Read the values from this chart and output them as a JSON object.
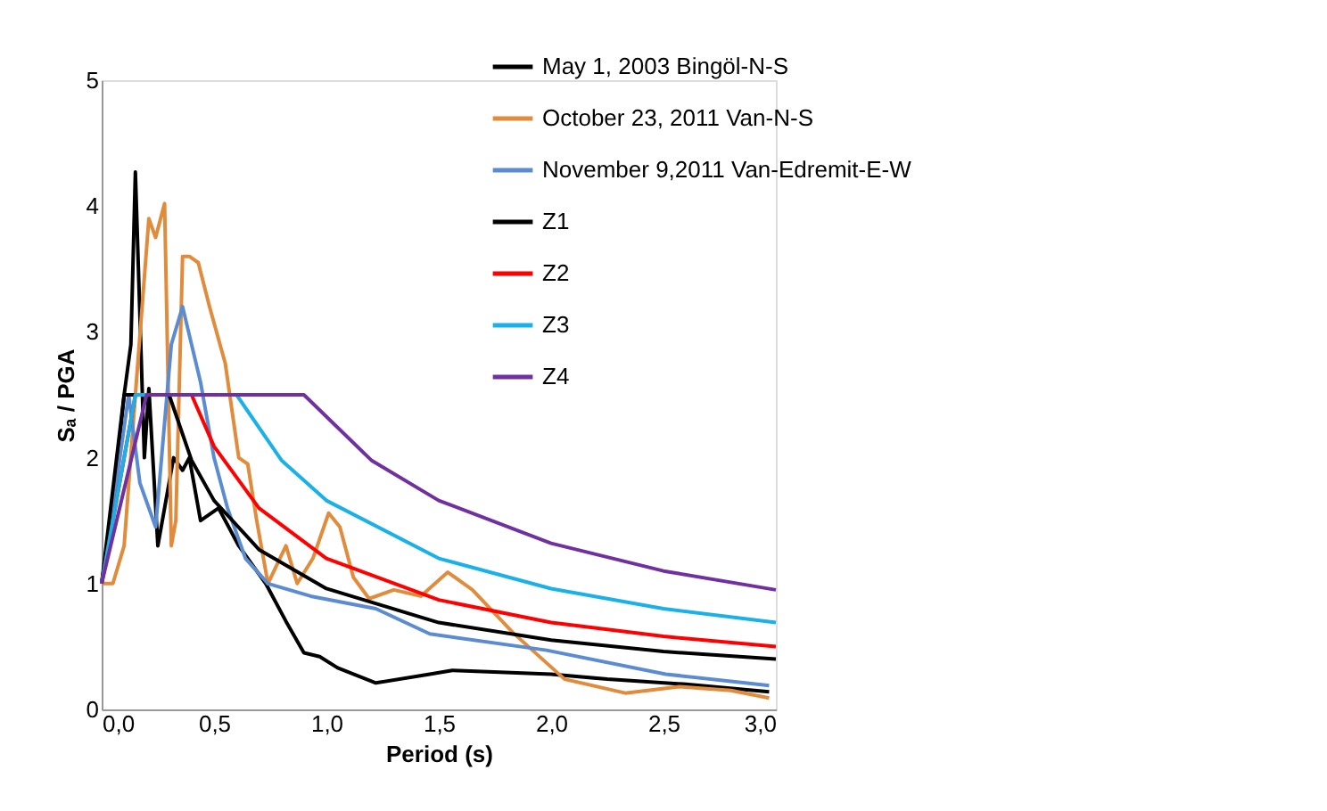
{
  "chart_data": {
    "type": "line",
    "xlabel": "Period (s)",
    "ylabel": "Sₐ / PGA",
    "xlim": [
      0,
      3
    ],
    "ylim": [
      0,
      5
    ],
    "xticks": [
      {
        "value": 0,
        "label": "0,0"
      },
      {
        "value": 0.5,
        "label": "0,5"
      },
      {
        "value": 1,
        "label": "1,0"
      },
      {
        "value": 1.5,
        "label": "1,5"
      },
      {
        "value": 2,
        "label": "2,0"
      },
      {
        "value": 2.5,
        "label": "2,5"
      },
      {
        "value": 3,
        "label": "3,0"
      }
    ],
    "yticks": [
      0,
      1,
      2,
      3,
      4,
      5
    ],
    "grid": false,
    "legend": "top right",
    "marker": "none",
    "line_style": "solid",
    "series": [
      {
        "name": "May 1, 2003 Bingöl-N-S",
        "color": "#000000",
        "x": [
          0,
          0.05,
          0.1,
          0.13,
          0.15,
          0.19,
          0.21,
          0.25,
          0.32,
          0.36,
          0.39,
          0.44,
          0.52,
          0.61,
          0.73,
          0.82,
          0.9,
          0.97,
          1.05,
          1.22,
          1.46,
          1.56,
          1.72,
          2.0,
          2.25,
          2.6,
          2.97
        ],
        "values": [
          1,
          1.6,
          2.5,
          2.9,
          4.27,
          2.0,
          2.55,
          1.3,
          2.0,
          1.9,
          2.0,
          1.5,
          1.6,
          1.3,
          1.0,
          0.7,
          0.45,
          0.42,
          0.33,
          0.21,
          0.28,
          0.31,
          0.3,
          0.28,
          0.24,
          0.2,
          0.14
        ]
      },
      {
        "name": "October 23, 2011 Van-N-S",
        "color": "#e08c3c",
        "x": [
          0,
          0.05,
          0.1,
          0.15,
          0.21,
          0.24,
          0.28,
          0.31,
          0.33,
          0.36,
          0.39,
          0.43,
          0.48,
          0.55,
          0.61,
          0.65,
          0.69,
          0.74,
          0.82,
          0.87,
          0.94,
          1.01,
          1.06,
          1.12,
          1.19,
          1.3,
          1.42,
          1.54,
          1.65,
          1.83,
          2.06,
          2.33,
          2.57,
          2.8,
          2.97
        ],
        "values": [
          1,
          1,
          1.3,
          2.5,
          3.9,
          3.75,
          4.02,
          1.3,
          1.5,
          3.6,
          3.6,
          3.55,
          3.2,
          2.75,
          2.0,
          1.95,
          1.5,
          1.0,
          1.3,
          1.0,
          1.2,
          1.56,
          1.45,
          1.05,
          0.88,
          0.95,
          0.9,
          1.09,
          0.95,
          0.61,
          0.24,
          0.13,
          0.18,
          0.15,
          0.09
        ]
      },
      {
        "name": "November 9,2011 Van-Edremit-E-W",
        "color": "#5b8bd0",
        "x": [
          0,
          0.05,
          0.12,
          0.17,
          0.24,
          0.31,
          0.36,
          0.44,
          0.5,
          0.56,
          0.64,
          0.74,
          0.93,
          1.22,
          1.46,
          1.98,
          2.51,
          2.97
        ],
        "values": [
          1,
          1.6,
          2.5,
          1.8,
          1.45,
          2.9,
          3.2,
          2.6,
          2.0,
          1.6,
          1.2,
          1.0,
          0.9,
          0.8,
          0.6,
          0.47,
          0.28,
          0.19
        ]
      },
      {
        "name": "Z1",
        "color": "#000000",
        "x": [
          0,
          0.1,
          0.3,
          0.4,
          0.5,
          0.7,
          1.0,
          1.5,
          2.0,
          2.5,
          3.0
        ],
        "values": [
          1,
          2.5,
          2.5,
          1.98,
          1.66,
          1.27,
          0.96,
          0.69,
          0.55,
          0.46,
          0.4
        ]
      },
      {
        "name": "Z2",
        "color": "#ff0000",
        "x": [
          0,
          0.15,
          0.4,
          0.5,
          0.7,
          1.0,
          1.5,
          2.0,
          2.5,
          3.0
        ],
        "values": [
          1,
          2.5,
          2.5,
          2.09,
          1.6,
          1.2,
          0.87,
          0.69,
          0.58,
          0.5
        ]
      },
      {
        "name": "Z3",
        "color": "#1ab0e8",
        "x": [
          0,
          0.15,
          0.6,
          0.8,
          1.0,
          1.5,
          2.0,
          2.5,
          3.0
        ],
        "values": [
          1,
          2.5,
          2.5,
          1.98,
          1.66,
          1.2,
          0.96,
          0.8,
          0.69
        ]
      },
      {
        "name": "Z4",
        "color": "#7030a0",
        "x": [
          0,
          0.2,
          0.9,
          1.2,
          1.5,
          2.0,
          2.5,
          3.0
        ],
        "values": [
          1,
          2.5,
          2.5,
          1.98,
          1.66,
          1.32,
          1.1,
          0.95
        ]
      }
    ]
  }
}
